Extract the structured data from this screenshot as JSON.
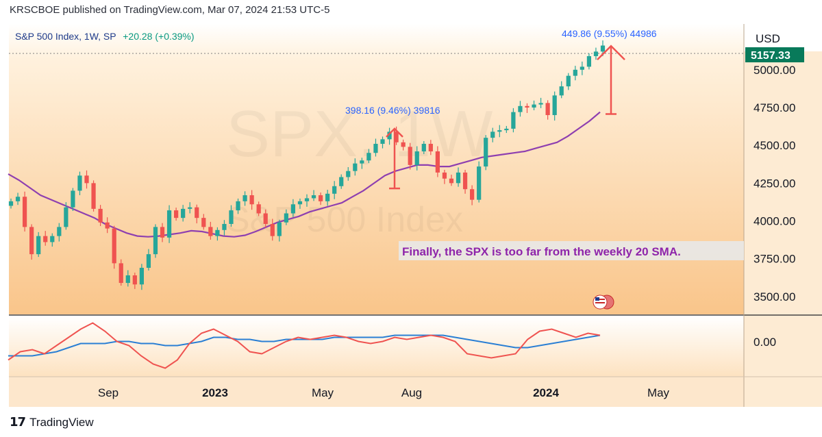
{
  "header": {
    "publisher_line": "KRSCBOE published on TradingView.com, Mar 07, 2024 21:53 UTC-5"
  },
  "legend": {
    "symbol": "S&P 500 Index, 1W, SP",
    "change": "+20.28 (+0.39%)"
  },
  "watermark": {
    "ticker": "SPX, 1W",
    "name": "S&P 500 Index"
  },
  "currency": "USD",
  "price_badge": "5157.33",
  "footer": {
    "brand": "TradingView"
  },
  "colors": {
    "background_top": "#ffffff",
    "background_bottom": "#f9c58a",
    "up_candle": "#26a69a",
    "down_candle": "#ef5350",
    "sma": "#8e3fb0",
    "oscillator_fast": "#ef5350",
    "oscillator_slow": "#2a7fd4",
    "annotation": "#2962ff",
    "arrow": "#ef5350",
    "badge": "#087a5a"
  },
  "chart_data": {
    "type": "candlestick",
    "symbol": "SPX",
    "interval": "1W",
    "y_axis": {
      "ticks": [
        "5000.00",
        "4750.00",
        "4500.00",
        "4250.00",
        "4000.00",
        "3750.00",
        "3500.00"
      ],
      "range": [
        3400,
        5280
      ]
    },
    "x_axis": {
      "ticks": [
        {
          "label": "Sep",
          "bold": false
        },
        {
          "label": "2023",
          "bold": true
        },
        {
          "label": "May",
          "bold": false
        },
        {
          "label": "Aug",
          "bold": false
        },
        {
          "label": "2024",
          "bold": true
        },
        {
          "label": "May",
          "bold": false
        }
      ]
    },
    "candles_close": [
      4130,
      4160,
      3960,
      3780,
      3900,
      3860,
      3900,
      3960,
      4090,
      4200,
      4300,
      4250,
      4080,
      3990,
      3950,
      3720,
      3590,
      3640,
      3580,
      3690,
      3780,
      3960,
      3890,
      4070,
      4020,
      4080,
      4090,
      4020,
      3960,
      3900,
      3940,
      3980,
      4070,
      4130,
      4170,
      4110,
      4050,
      3980,
      3900,
      3990,
      4050,
      4110,
      4130,
      4150,
      4170,
      4130,
      4180,
      4230,
      4290,
      4330,
      4380,
      4400,
      4450,
      4510,
      4540,
      4590,
      4520,
      4490,
      4370,
      4460,
      4510,
      4460,
      4320,
      4280,
      4250,
      4320,
      4210,
      4140,
      4360,
      4550,
      4590,
      4600,
      4610,
      4720,
      4760,
      4750,
      4770,
      4780,
      4700,
      4830,
      4890,
      4960,
      5000,
      5020,
      5090,
      5120,
      5160
    ],
    "sma20": [
      4310,
      4270,
      4220,
      4170,
      4140,
      4110,
      4080,
      4050,
      4020,
      3980,
      3950,
      3920,
      3900,
      3895,
      3900,
      3910,
      3920,
      3935,
      3930,
      3915,
      3900,
      3895,
      3905,
      3930,
      3960,
      3990,
      4010,
      4030,
      4060,
      4080,
      4100,
      4120,
      4160,
      4200,
      4250,
      4300,
      4330,
      4350,
      4370,
      4370,
      4360,
      4360,
      4380,
      4400,
      4420,
      4430,
      4440,
      4450,
      4460,
      4480,
      4500,
      4520,
      4560,
      4610,
      4660,
      4720
    ],
    "annotations": [
      {
        "text": "398.16 (9.46%) 39816",
        "from_price": 4215,
        "to_price": 4610
      },
      {
        "text": "449.86 (9.55%) 44986",
        "from_price": 4707,
        "to_price": 5157
      }
    ],
    "callout": "Finally, the SPX is too far from the weekly 20 SMA.",
    "oscillator": {
      "axis_label": "0.00",
      "fast": [
        -0.6,
        -0.2,
        -0.1,
        -0.3,
        0.1,
        0.5,
        0.9,
        1.2,
        0.8,
        0.3,
        0.1,
        -0.4,
        -0.8,
        -1.0,
        -0.6,
        0.2,
        0.7,
        0.9,
        0.6,
        0.3,
        -0.2,
        -0.3,
        0.0,
        0.3,
        0.5,
        0.4,
        0.5,
        0.6,
        0.5,
        0.3,
        0.2,
        0.3,
        0.5,
        0.4,
        0.5,
        0.6,
        0.5,
        0.3,
        -0.3,
        -0.4,
        -0.5,
        -0.4,
        -0.3,
        0.4,
        0.8,
        0.9,
        0.7,
        0.5,
        0.7,
        0.6
      ],
      "slow": [
        -0.4,
        -0.4,
        -0.4,
        -0.3,
        -0.2,
        0.0,
        0.2,
        0.2,
        0.2,
        0.3,
        0.3,
        0.2,
        0.2,
        0.1,
        0.1,
        0.2,
        0.3,
        0.5,
        0.5,
        0.4,
        0.4,
        0.3,
        0.3,
        0.4,
        0.4,
        0.4,
        0.4,
        0.5,
        0.5,
        0.5,
        0.5,
        0.5,
        0.6,
        0.6,
        0.6,
        0.6,
        0.6,
        0.5,
        0.4,
        0.3,
        0.2,
        0.1,
        0.0,
        0.0,
        0.1,
        0.2,
        0.3,
        0.4,
        0.5,
        0.6
      ]
    }
  }
}
